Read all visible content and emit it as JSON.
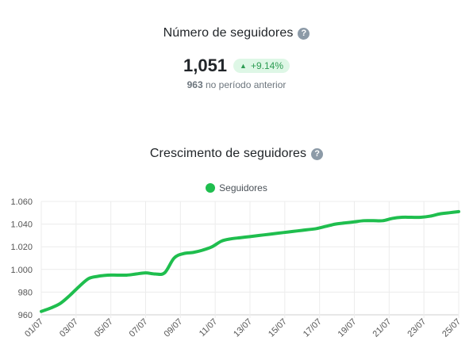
{
  "metric": {
    "title": "Número de seguidores",
    "help_glyph": "?",
    "value": "1,051",
    "change": "+9.14%",
    "previous_value": "963",
    "previous_label": "no período anterior"
  },
  "growth": {
    "title": "Crescimento de seguidores",
    "help_glyph": "?"
  },
  "colors": {
    "accent": "#1fbe4e",
    "badge_bg": "#def7e6",
    "badge_text": "#2c9b52"
  },
  "chart_data": {
    "type": "line",
    "title": "Crescimento de seguidores",
    "series": [
      {
        "name": "Seguidores",
        "color": "#1fbe4e",
        "values": [
          963,
          966,
          970,
          977,
          985,
          992,
          994,
          995,
          995,
          995,
          996,
          997,
          996,
          997,
          1010,
          1014,
          1015,
          1017,
          1020,
          1025,
          1027,
          1028,
          1029,
          1030,
          1031,
          1032,
          1033,
          1034,
          1035,
          1036,
          1038,
          1040,
          1041,
          1042,
          1043,
          1043,
          1043,
          1045,
          1046,
          1046,
          1046,
          1047,
          1049,
          1050,
          1051
        ]
      }
    ],
    "x_tick_labels": [
      "01/07",
      "03/07",
      "05/07",
      "07/07",
      "09/07",
      "11/07",
      "13/07",
      "15/07",
      "17/07",
      "19/07",
      "21/07",
      "23/07",
      "25/07"
    ],
    "y_ticks": [
      "960",
      "980",
      "1.000",
      "1.020",
      "1.040",
      "1.060"
    ],
    "y_tick_values": [
      960,
      980,
      1000,
      1020,
      1040,
      1060
    ],
    "ylim": [
      960,
      1060
    ],
    "grid": true,
    "legend_position": "top-center"
  }
}
